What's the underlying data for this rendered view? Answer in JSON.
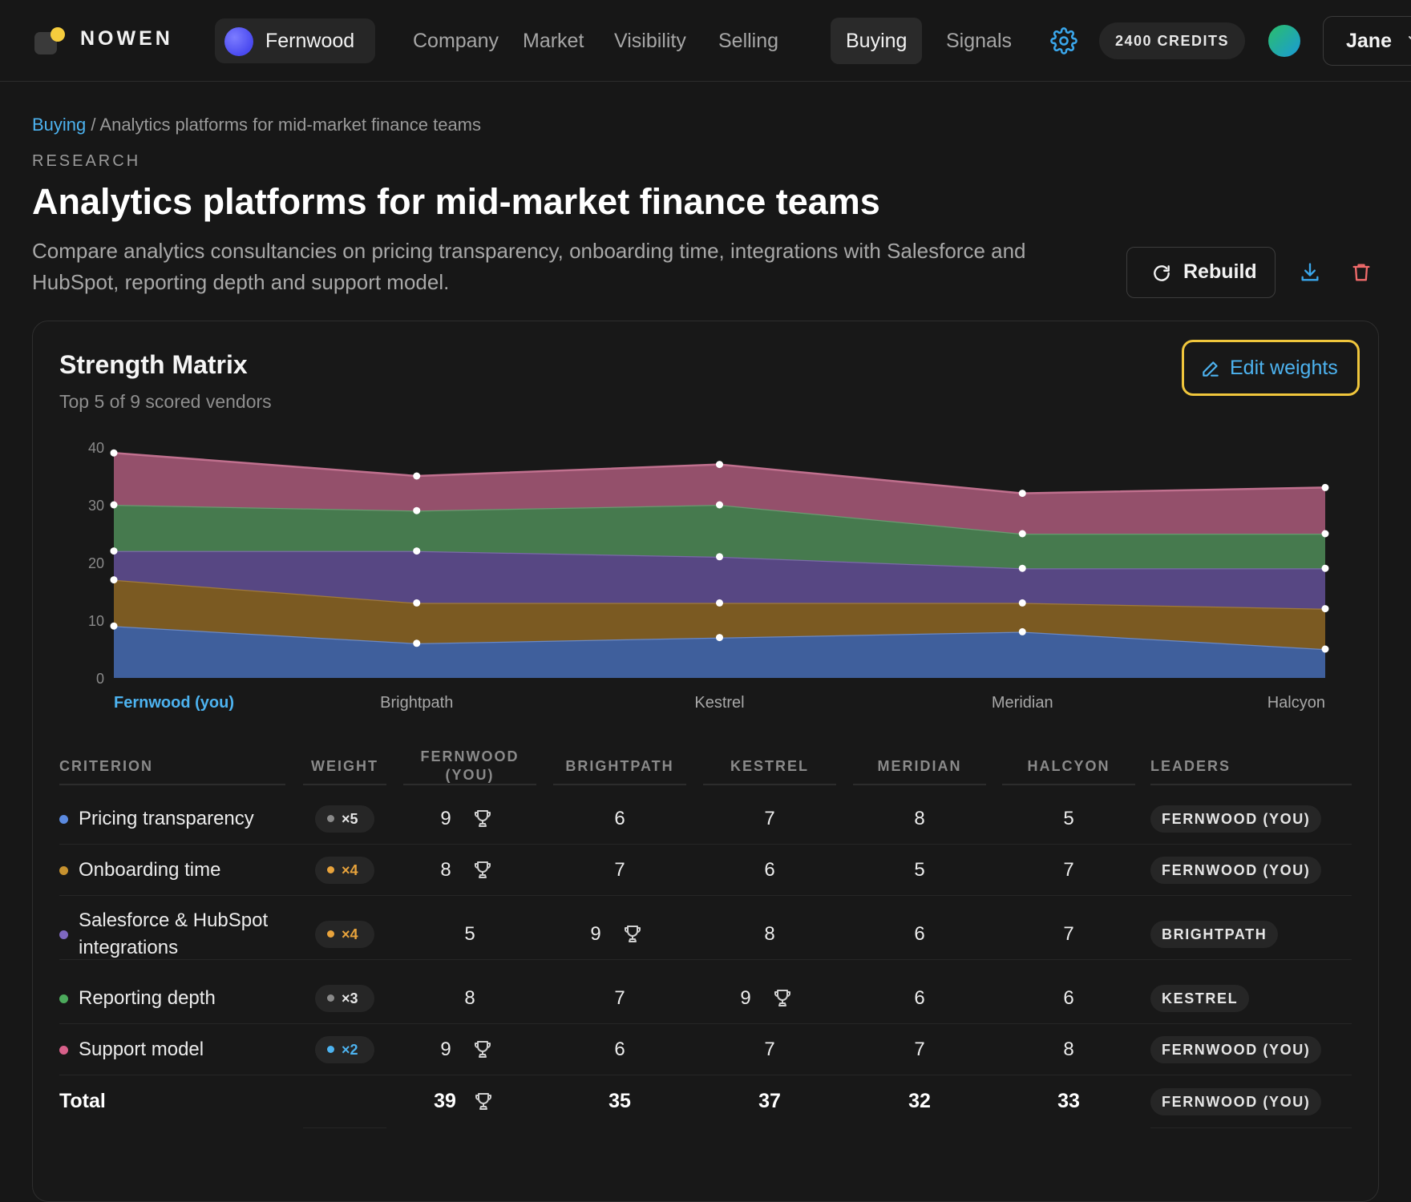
{
  "nav": {
    "brand": "NOWEN",
    "workspace": "Fernwood",
    "items": [
      "Company",
      "Market",
      "Visibility",
      "Selling",
      "Buying",
      "Signals"
    ],
    "active": "Buying",
    "credits": "2400 CREDITS",
    "user": "Jane"
  },
  "header": {
    "breadcrumb_link": "Buying",
    "breadcrumb_sep": " / ",
    "breadcrumb_current": "Analytics platforms for mid-market finance teams",
    "eyebrow": "RESEARCH",
    "title": "Analytics platforms for mid-market finance teams",
    "description": "Compare analytics consultancies on pricing transparency, onboarding time, integrations with Salesforce and HubSpot, reporting depth and support model.",
    "rebuild_label": "Rebuild"
  },
  "card": {
    "title": "Strength Matrix",
    "subtitle": "Top 5 of 9 scored vendors",
    "edit_label": "Edit weights"
  },
  "chart_data": {
    "type": "area",
    "stacked": true,
    "categories": [
      "Fernwood (you)",
      "Brightpath",
      "Kestrel",
      "Meridian",
      "Halcyon"
    ],
    "highlight_category": "Fernwood (you)",
    "ylim": [
      0,
      40
    ],
    "yticks": [
      0,
      10,
      20,
      30,
      40
    ],
    "grid": false,
    "series": [
      {
        "name": "Pricing transparency",
        "color": "#3f5f9c",
        "line": "#6a88c4",
        "values": [
          9,
          6,
          7,
          8,
          5
        ]
      },
      {
        "name": "Onboarding time",
        "color": "#7b5a22",
        "line": "#a07a3c",
        "values": [
          8,
          7,
          6,
          5,
          7
        ]
      },
      {
        "name": "Salesforce & HubSpot integrations",
        "color": "#574783",
        "line": "#7a6aa8",
        "values": [
          5,
          9,
          8,
          6,
          7
        ]
      },
      {
        "name": "Reporting depth",
        "color": "#467a4e",
        "line": "#6a9a70",
        "values": [
          8,
          7,
          9,
          6,
          6
        ]
      },
      {
        "name": "Support model",
        "color": "#94506b",
        "line": "#c0708e",
        "values": [
          9,
          6,
          7,
          7,
          8
        ]
      }
    ]
  },
  "table": {
    "headers": {
      "criterion": "CRITERION",
      "weight": "WEIGHT",
      "vendors": [
        "FERNWOOD\n(YOU)",
        "BRIGHTPATH",
        "KESTREL",
        "MERIDIAN",
        "HALCYON"
      ],
      "leaders": "LEADERS"
    },
    "rows": [
      {
        "criterion": "Pricing transparency",
        "bullet": "#5b8ae0",
        "weight": "×5",
        "weight_color": "#8a8a8a",
        "weight_text_color": "#e6e6e6",
        "scores": [
          "9",
          "6",
          "7",
          "8",
          "5"
        ],
        "winner": 0,
        "leader": "FERNWOOD (YOU)"
      },
      {
        "criterion": "Onboarding time",
        "bullet": "#c7922f",
        "weight": "×4",
        "weight_color": "#e8a33c",
        "weight_text_color": "#e8a33c",
        "scores": [
          "8",
          "7",
          "6",
          "5",
          "7"
        ],
        "winner": 0,
        "leader": "FERNWOOD (YOU)"
      },
      {
        "criterion": "Salesforce & HubSpot\nintegrations",
        "bullet": "#7e68c0",
        "weight": "×4",
        "weight_color": "#e8a33c",
        "weight_text_color": "#e8a33c",
        "scores": [
          "5",
          "9",
          "8",
          "6",
          "7"
        ],
        "winner": 1,
        "leader": "BRIGHTPATH"
      },
      {
        "criterion": "Reporting depth",
        "bullet": "#4caa5c",
        "weight": "×3",
        "weight_color": "#8a8a8a",
        "weight_text_color": "#e6e6e6",
        "scores": [
          "8",
          "7",
          "9",
          "6",
          "6"
        ],
        "winner": 2,
        "leader": "KESTREL"
      },
      {
        "criterion": "Support model",
        "bullet": "#d8608a",
        "weight": "×2",
        "weight_color": "#4db3f0",
        "weight_text_color": "#4db3f0",
        "scores": [
          "9",
          "6",
          "7",
          "7",
          "8"
        ],
        "winner": 0,
        "leader": "FERNWOOD (YOU)"
      }
    ],
    "total": {
      "label": "Total",
      "scores": [
        "39",
        "35",
        "37",
        "32",
        "33"
      ],
      "winner": 0,
      "leader": "FERNWOOD (YOU)"
    }
  },
  "icons": {
    "gear": "gear-icon",
    "rebuild": "refresh-icon",
    "download": "download-icon",
    "delete": "trash-icon",
    "edit": "pencil-icon",
    "winner": "trophy-icon"
  }
}
